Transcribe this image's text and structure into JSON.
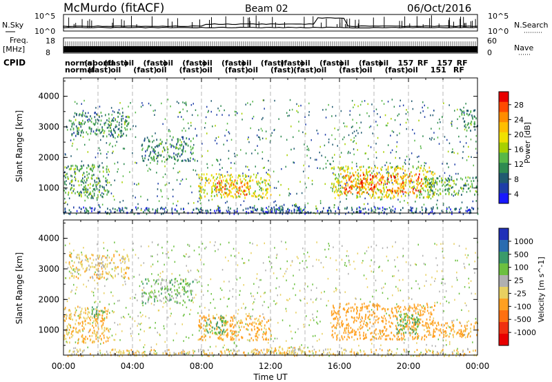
{
  "header": {
    "station": "McMurdo (fitACF)",
    "beam": "Beam 02",
    "date": "06/Oct/2016"
  },
  "top_strips": {
    "nsky_label": "N.Sky",
    "nsky_ticks": [
      "10^5",
      "10^0"
    ],
    "nsearch_label": "N.Search",
    "nsearch_ticks": [
      "10^5",
      "10^0"
    ],
    "freq_label": "Freq.",
    "freq_unit": "[MHz]",
    "freq_ticks": [
      "18",
      "8"
    ],
    "nave_label": "Nave",
    "nave_ticks": [
      "60",
      "0"
    ],
    "cpid_label": "CPID",
    "cpid_row1": [
      "normal",
      "(spond",
      "(fast)",
      "oil",
      "(fast)",
      "oil",
      "(fast)",
      "oil",
      "(fast)",
      "oil",
      "(fast)",
      "(fast)",
      "oil",
      "(fast)",
      "oil",
      "(fast)",
      "oil",
      "157",
      "RF",
      "157",
      "RF"
    ],
    "cpid_row2": [
      "normal",
      "(fast)",
      "oil",
      "(fast)",
      "oil",
      "(fast)",
      "oil",
      "(fast)",
      "oil",
      "(fast)",
      "(fast)",
      "oil",
      "(fast)",
      "oil",
      "(fast)",
      "oil",
      "151",
      "RF"
    ]
  },
  "chart_data": [
    {
      "type": "heatmap",
      "panel": "power",
      "ylabel": "Slant Range [km]",
      "xlabel": "",
      "ylim": [
        180,
        4600
      ],
      "xlim_hours": [
        0,
        24
      ],
      "yticks": [
        1000,
        2000,
        3000,
        4000
      ],
      "colorbar_label": "Power [dB]",
      "colorbar_ticks": [
        "28",
        "24",
        "20",
        "16",
        "12",
        "8",
        "4"
      ],
      "colorbar_colors": [
        "#e80000",
        "#ff4a00",
        "#ff8c00",
        "#ffbe00",
        "#f0e000",
        "#a8d000",
        "#58b848",
        "#2e8a50",
        "#205a70",
        "#1e3ea8",
        "#1818ff"
      ],
      "regions": [
        {
          "t0": 0.0,
          "t1": 2.6,
          "r0": 700,
          "r1": 1800,
          "v": 12
        },
        {
          "t0": 0.3,
          "t1": 3.8,
          "r0": 2700,
          "r1": 3500,
          "v": 10
        },
        {
          "t0": 4.5,
          "t1": 7.5,
          "r0": 1900,
          "r1": 2700,
          "v": 10
        },
        {
          "t0": 7.8,
          "t1": 12.0,
          "r0": 700,
          "r1": 1500,
          "v": 18
        },
        {
          "t0": 8.8,
          "t1": 10.8,
          "r0": 800,
          "r1": 1300,
          "v": 24
        },
        {
          "t0": 12.0,
          "t1": 14.0,
          "r0": 200,
          "r1": 500,
          "v": 8
        },
        {
          "t0": 15.5,
          "t1": 21.5,
          "r0": 700,
          "r1": 1750,
          "v": 18
        },
        {
          "t0": 16.2,
          "t1": 20.8,
          "r0": 850,
          "r1": 1500,
          "v": 26
        },
        {
          "t0": 21.0,
          "t1": 24.0,
          "r0": 800,
          "r1": 1400,
          "v": 12
        },
        {
          "t0": 23.0,
          "t1": 24.0,
          "r0": 2900,
          "r1": 3600,
          "v": 10
        },
        {
          "t0": 0.0,
          "t1": 24.0,
          "r0": 180,
          "r1": 400,
          "v": 6
        }
      ]
    },
    {
      "type": "heatmap",
      "panel": "velocity",
      "ylabel": "Slant Range [km]",
      "xlabel": "Time UT",
      "ylim": [
        180,
        4600
      ],
      "xlim_hours": [
        0,
        24
      ],
      "yticks": [
        1000,
        2000,
        3000,
        4000
      ],
      "xticks": [
        "00:00",
        "04:00",
        "08:00",
        "12:00",
        "16:00",
        "20:00",
        "00:00"
      ],
      "colorbar_label": "Velocity [m s^-1]",
      "colorbar_ticks": [
        "1000",
        "500",
        "100",
        "25",
        "-25",
        "-100",
        "-500",
        "-1000"
      ],
      "colorbar_colors": [
        "#2030b8",
        "#2a6cb0",
        "#3a9a6a",
        "#6cc040",
        "#b0b0b0",
        "#e8d060",
        "#ffa020",
        "#ff7010",
        "#f03010",
        "#e80000"
      ],
      "regions": [
        {
          "t0": 0.0,
          "t1": 2.6,
          "r0": 600,
          "r1": 1800,
          "v": -100
        },
        {
          "t0": 1.6,
          "t1": 2.4,
          "r0": 1400,
          "r1": 1800,
          "v": 100
        },
        {
          "t0": 0.3,
          "t1": 3.8,
          "r0": 2700,
          "r1": 3500,
          "v": -60
        },
        {
          "t0": 4.5,
          "t1": 7.5,
          "r0": 1900,
          "r1": 2700,
          "v": 60
        },
        {
          "t0": 7.8,
          "t1": 12.0,
          "r0": 700,
          "r1": 1500,
          "v": -150
        },
        {
          "t0": 8.2,
          "t1": 9.4,
          "r0": 900,
          "r1": 1500,
          "v": 100
        },
        {
          "t0": 12.0,
          "t1": 14.0,
          "r0": 200,
          "r1": 500,
          "v": -80
        },
        {
          "t0": 15.5,
          "t1": 21.5,
          "r0": 700,
          "r1": 1900,
          "v": -200
        },
        {
          "t0": 19.2,
          "t1": 20.6,
          "r0": 900,
          "r1": 1600,
          "v": 100
        },
        {
          "t0": 21.0,
          "t1": 24.0,
          "r0": 800,
          "r1": 1300,
          "v": -150
        },
        {
          "t0": 0.0,
          "t1": 24.0,
          "r0": 180,
          "r1": 400,
          "v": -60
        }
      ]
    }
  ]
}
